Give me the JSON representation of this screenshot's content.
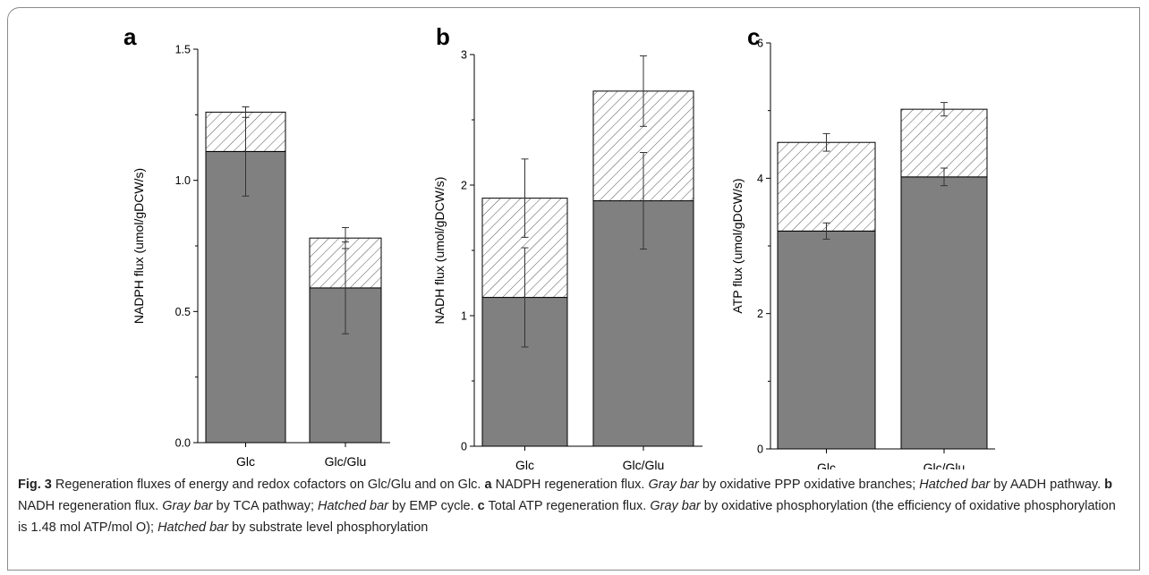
{
  "figure": {
    "caption": {
      "label": "Fig. 3",
      "segments": [
        {
          "t": "Regeneration fluxes of energy and redox cofactors on Glc/Glu and on Glc. ",
          "s": "n"
        },
        {
          "t": "a",
          "s": "b"
        },
        {
          "t": " NADPH regeneration flux. ",
          "s": "n"
        },
        {
          "t": "Gray bar",
          "s": "i"
        },
        {
          "t": " by oxidative PPP oxidative branches; ",
          "s": "n"
        },
        {
          "t": "Hatched bar",
          "s": "i"
        },
        {
          "t": " by AADH pathway. ",
          "s": "n"
        },
        {
          "t": "b",
          "s": "b"
        },
        {
          "t": " NADH regeneration flux. ",
          "s": "n"
        },
        {
          "t": "Gray bar",
          "s": "i"
        },
        {
          "t": " by TCA pathway; ",
          "s": "n"
        },
        {
          "t": "Hatched bar",
          "s": "i"
        },
        {
          "t": " by EMP cycle. ",
          "s": "n"
        },
        {
          "t": "c",
          "s": "b"
        },
        {
          "t": " Total ATP regeneration flux. ",
          "s": "n"
        },
        {
          "t": "Gray bar",
          "s": "i"
        },
        {
          "t": " by oxidative phosphorylation (the efficiency of oxidative phosphorylation is 1.48 mol ATP/mol O); ",
          "s": "n"
        },
        {
          "t": "Hatched bar",
          "s": "i"
        },
        {
          "t": " by substrate level phosphorylation",
          "s": "n"
        }
      ]
    }
  },
  "colors": {
    "gray_bar": "#808080",
    "hatch_line": "#555555",
    "axis": "#000000"
  },
  "chart_data": [
    {
      "type": "bar",
      "panel": "a",
      "stacked": true,
      "categories": [
        "Glc",
        "Glc/Glu"
      ],
      "ylabel": "NADPH flux (umol/gDCW/s)",
      "ylim": [
        0,
        1.5
      ],
      "yticks": [
        "0.0",
        "0.5",
        "1.0",
        "1.5"
      ],
      "series": [
        {
          "pattern": "solid-gray",
          "values": [
            1.11,
            0.59
          ],
          "error": [
            0.17,
            0.175
          ]
        },
        {
          "pattern": "hatched",
          "values": [
            0.15,
            0.19
          ],
          "error": [
            0.02,
            0.04
          ]
        }
      ]
    },
    {
      "type": "bar",
      "panel": "b",
      "stacked": true,
      "categories": [
        "Glc",
        "Glc/Glu"
      ],
      "ylabel": "NADH flux (umol/gDCW/s)",
      "ylim": [
        0,
        3
      ],
      "yticks": [
        "0",
        "1",
        "2",
        "3"
      ],
      "series": [
        {
          "pattern": "solid-gray",
          "values": [
            1.14,
            1.88
          ],
          "error": [
            0.38,
            0.37
          ]
        },
        {
          "pattern": "hatched",
          "values": [
            0.76,
            0.84
          ],
          "error": [
            0.3,
            0.27
          ]
        }
      ]
    },
    {
      "type": "bar",
      "panel": "c",
      "stacked": true,
      "categories": [
        "Glc",
        "Glc/Glu"
      ],
      "ylabel": "ATP flux (umol/gDCW/s)",
      "ylim": [
        0,
        6
      ],
      "yticks": [
        "0",
        "2",
        "4",
        "6"
      ],
      "series": [
        {
          "pattern": "solid-gray",
          "values": [
            3.22,
            4.02
          ],
          "error": [
            0.12,
            0.13
          ]
        },
        {
          "pattern": "hatched",
          "values": [
            1.31,
            1.0
          ],
          "error": [
            0.13,
            0.1
          ]
        }
      ]
    }
  ]
}
